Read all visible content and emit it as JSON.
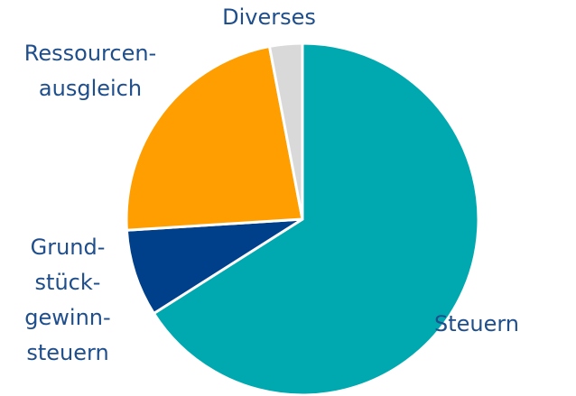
{
  "chart_data": {
    "type": "pie",
    "categories": [
      [
        "Steuern"
      ],
      [
        "Grund-",
        "stück-",
        "gewinn-",
        "steuern"
      ],
      [
        "Ressourcen-",
        "ausgleich"
      ],
      [
        "Diverses"
      ]
    ],
    "values": [
      66,
      8,
      23,
      3
    ],
    "colors": [
      "#00a9b0",
      "#003f8a",
      "#ff9e00",
      "#d9d9d9"
    ]
  }
}
